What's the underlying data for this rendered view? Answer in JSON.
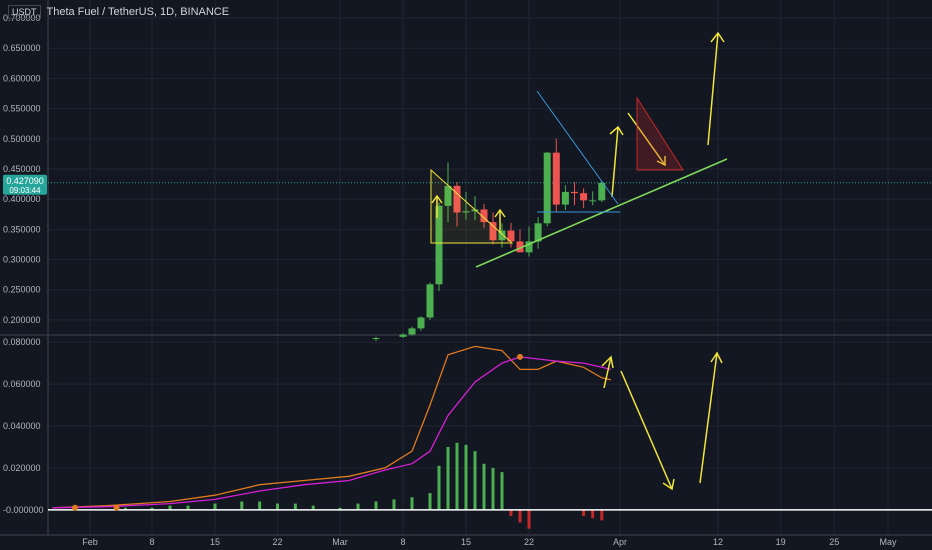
{
  "header": {
    "quote_unit": "USDT",
    "symbol_title": "Theta Fuel / TetherUS, 1D, BINANCE"
  },
  "price_tag": {
    "value": "0.427090",
    "countdown": "09:03:44"
  },
  "colors": {
    "background": "#131722",
    "grid": "#1f2433",
    "up": "#4caf50",
    "down": "#ef5350",
    "yellow": "#f0e43a",
    "green_line": "#7ed957",
    "blue_line": "#3a98d8",
    "orange_line": "#e07a1f",
    "magenta_line": "#d81fd8",
    "zero_line": "#ffffff",
    "price_tag_bg": "#26a69a",
    "pivot_red": "#c62828"
  },
  "chart_data": [
    {
      "type": "candlestick",
      "title": "Theta Fuel / TetherUS, 1D, BINANCE",
      "y_axis_labels": [
        "0.700000",
        "0.650000",
        "0.600000",
        "0.550000",
        "0.500000",
        "0.450000",
        "0.400000",
        "0.350000",
        "0.300000",
        "0.250000",
        "0.200000"
      ],
      "ylim": [
        0.18,
        0.7
      ],
      "x_axis_labels": [
        "Feb",
        "8",
        "15",
        "22",
        "Mar",
        "8",
        "15",
        "22",
        "Apr",
        "12",
        "19",
        "25",
        "May"
      ],
      "candles": [
        {
          "date": "2021-03-05",
          "open": 0.17,
          "high": 0.172,
          "low": 0.165,
          "close": 0.17
        },
        {
          "date": "2021-03-08",
          "open": 0.172,
          "high": 0.178,
          "low": 0.17,
          "close": 0.176
        },
        {
          "date": "2021-03-09",
          "open": 0.176,
          "high": 0.189,
          "low": 0.174,
          "close": 0.186
        },
        {
          "date": "2021-03-10",
          "open": 0.186,
          "high": 0.206,
          "low": 0.182,
          "close": 0.204
        },
        {
          "date": "2021-03-11",
          "open": 0.204,
          "high": 0.262,
          "low": 0.2,
          "close": 0.259
        },
        {
          "date": "2021-03-12",
          "open": 0.259,
          "high": 0.394,
          "low": 0.248,
          "close": 0.389
        },
        {
          "date": "2021-03-13",
          "open": 0.389,
          "high": 0.461,
          "low": 0.362,
          "close": 0.422
        },
        {
          "date": "2021-03-14",
          "open": 0.422,
          "high": 0.428,
          "low": 0.355,
          "close": 0.378
        },
        {
          "date": "2021-03-15",
          "open": 0.378,
          "high": 0.412,
          "low": 0.366,
          "close": 0.38
        },
        {
          "date": "2021-03-16",
          "open": 0.38,
          "high": 0.405,
          "low": 0.365,
          "close": 0.383
        },
        {
          "date": "2021-03-17",
          "open": 0.383,
          "high": 0.392,
          "low": 0.352,
          "close": 0.362
        },
        {
          "date": "2021-03-18",
          "open": 0.362,
          "high": 0.378,
          "low": 0.325,
          "close": 0.332
        },
        {
          "date": "2021-03-19",
          "open": 0.332,
          "high": 0.36,
          "low": 0.32,
          "close": 0.348
        },
        {
          "date": "2021-03-20",
          "open": 0.348,
          "high": 0.361,
          "low": 0.32,
          "close": 0.33
        },
        {
          "date": "2021-03-21",
          "open": 0.33,
          "high": 0.35,
          "low": 0.312,
          "close": 0.312
        },
        {
          "date": "2021-03-22",
          "open": 0.312,
          "high": 0.355,
          "low": 0.305,
          "close": 0.33
        },
        {
          "date": "2021-03-23",
          "open": 0.33,
          "high": 0.37,
          "low": 0.318,
          "close": 0.36
        },
        {
          "date": "2021-03-24",
          "open": 0.36,
          "high": 0.478,
          "low": 0.355,
          "close": 0.477
        },
        {
          "date": "2021-03-25",
          "open": 0.477,
          "high": 0.5,
          "low": 0.378,
          "close": 0.391
        },
        {
          "date": "2021-03-26",
          "open": 0.391,
          "high": 0.423,
          "low": 0.382,
          "close": 0.412
        },
        {
          "date": "2021-03-27",
          "open": 0.412,
          "high": 0.428,
          "low": 0.39,
          "close": 0.41
        },
        {
          "date": "2021-03-28",
          "open": 0.41,
          "high": 0.418,
          "low": 0.385,
          "close": 0.398
        },
        {
          "date": "2021-03-29",
          "open": 0.398,
          "high": 0.413,
          "low": 0.39,
          "close": 0.398
        },
        {
          "date": "2021-03-30",
          "open": 0.398,
          "high": 0.43,
          "low": 0.395,
          "close": 0.427
        }
      ],
      "last_price": 0.42709
    },
    {
      "type": "line",
      "y_axis_labels": [
        "0.080000",
        "0.060000",
        "0.040000",
        "0.020000",
        "-0.000000"
      ],
      "ylim": [
        -0.012,
        0.082
      ],
      "series": [
        {
          "color_key": "orange_line",
          "x": [
            "2021-01-27",
            "2021-02-03",
            "2021-02-10",
            "2021-02-15",
            "2021-02-20",
            "2021-02-25",
            "2021-03-02",
            "2021-03-06",
            "2021-03-09",
            "2021-03-11",
            "2021-03-13",
            "2021-03-16",
            "2021-03-19",
            "2021-03-21",
            "2021-03-23",
            "2021-03-25",
            "2021-03-28",
            "2021-03-30",
            "2021-03-31"
          ],
          "y": [
            0.001,
            0.002,
            0.004,
            0.007,
            0.012,
            0.014,
            0.016,
            0.02,
            0.028,
            0.05,
            0.074,
            0.078,
            0.076,
            0.067,
            0.067,
            0.071,
            0.068,
            0.063,
            0.062
          ]
        },
        {
          "color_key": "magenta_line",
          "x": [
            "2021-01-27",
            "2021-02-03",
            "2021-02-10",
            "2021-02-15",
            "2021-02-20",
            "2021-02-25",
            "2021-03-02",
            "2021-03-06",
            "2021-03-09",
            "2021-03-11",
            "2021-03-13",
            "2021-03-16",
            "2021-03-19",
            "2021-03-21",
            "2021-03-23",
            "2021-03-25",
            "2021-03-28",
            "2021-03-30",
            "2021-03-31"
          ],
          "y": [
            0.001,
            0.0015,
            0.003,
            0.005,
            0.009,
            0.012,
            0.014,
            0.019,
            0.022,
            0.028,
            0.045,
            0.061,
            0.07,
            0.073,
            0.072,
            0.071,
            0.07,
            0.068,
            0.067
          ]
        }
      ],
      "histogram": {
        "x": [
          "2021-02-05",
          "2021-02-08",
          "2021-02-10",
          "2021-02-12",
          "2021-02-15",
          "2021-02-18",
          "2021-02-20",
          "2021-02-22",
          "2021-02-24",
          "2021-02-26",
          "2021-03-01",
          "2021-03-03",
          "2021-03-05",
          "2021-03-07",
          "2021-03-09",
          "2021-03-11",
          "2021-03-12",
          "2021-03-13",
          "2021-03-14",
          "2021-03-15",
          "2021-03-16",
          "2021-03-17",
          "2021-03-18",
          "2021-03-19",
          "2021-03-20",
          "2021-03-21",
          "2021-03-22",
          "2021-03-28",
          "2021-03-29",
          "2021-03-30"
        ],
        "y": [
          0.001,
          0.001,
          0.002,
          0.002,
          0.003,
          0.004,
          0.004,
          0.003,
          0.003,
          0.002,
          0.001,
          0.003,
          0.004,
          0.005,
          0.006,
          0.008,
          0.021,
          0.03,
          0.032,
          0.031,
          0.028,
          0.022,
          0.02,
          0.018,
          -0.003,
          -0.006,
          -0.009,
          -0.003,
          -0.004,
          -0.005
        ]
      },
      "pivot_markers": [
        {
          "x": "2021-01-30",
          "y": 0.001
        },
        {
          "x": "2021-02-04",
          "y": 0.001
        },
        {
          "x": "2021-03-21",
          "y": 0.073
        }
      ],
      "zero_line": 0
    }
  ]
}
